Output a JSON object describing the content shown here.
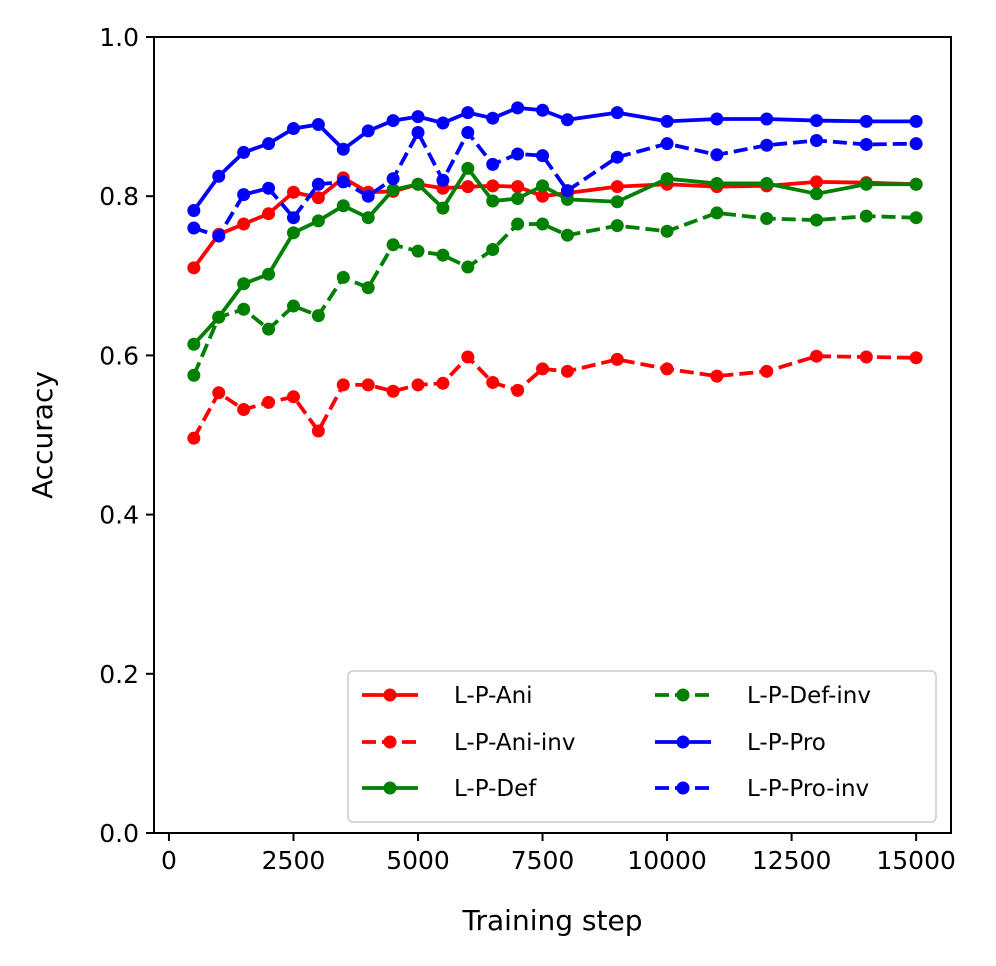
{
  "chart_data": {
    "type": "line",
    "title": "",
    "xlabel": "Training step",
    "ylabel": "Accuracy",
    "xlim": [
      -300,
      15700
    ],
    "ylim": [
      0.0,
      1.0
    ],
    "xticks": [
      0,
      2500,
      5000,
      7500,
      10000,
      12500,
      15000
    ],
    "xtick_labels": [
      "0",
      "2500",
      "5000",
      "7500",
      "10000",
      "12500",
      "15000"
    ],
    "yticks": [
      0.0,
      0.2,
      0.4,
      0.6,
      0.8,
      1.0
    ],
    "ytick_labels": [
      "0.0",
      "0.2",
      "0.4",
      "0.6",
      "0.8",
      "1.0"
    ],
    "grid": false,
    "legend_position": "bottom-right",
    "x": [
      500,
      1000,
      1500,
      2000,
      2500,
      3000,
      3500,
      4000,
      4500,
      5000,
      5500,
      6000,
      6500,
      7000,
      7500,
      8000,
      9000,
      10000,
      11000,
      12000,
      13000,
      14000,
      15000
    ],
    "series": [
      {
        "name": "L-P-Ani",
        "color": "#ff0000",
        "dash": "solid",
        "values": [
          0.71,
          0.752,
          0.765,
          0.778,
          0.805,
          0.798,
          0.823,
          0.805,
          0.806,
          0.815,
          0.81,
          0.812,
          0.813,
          0.812,
          0.8,
          0.804,
          0.812,
          0.815,
          0.812,
          0.813,
          0.818,
          0.817,
          0.815
        ]
      },
      {
        "name": "L-P-Ani-inv",
        "color": "#ff0000",
        "dash": "dashed",
        "values": [
          0.496,
          0.553,
          0.532,
          0.541,
          0.548,
          0.505,
          0.563,
          0.563,
          0.555,
          0.563,
          0.565,
          0.598,
          0.566,
          0.556,
          0.583,
          0.58,
          0.595,
          0.583,
          0.574,
          0.58,
          0.599,
          0.598,
          0.597
        ]
      },
      {
        "name": "L-P-Def",
        "color": "#008000",
        "dash": "solid",
        "values": [
          0.614,
          0.648,
          0.69,
          0.702,
          0.754,
          0.769,
          0.788,
          0.773,
          0.808,
          0.815,
          0.785,
          0.835,
          0.794,
          0.797,
          0.813,
          0.796,
          0.793,
          0.822,
          0.816,
          0.816,
          0.803,
          0.815,
          0.815
        ]
      },
      {
        "name": "L-P-Def-inv",
        "color": "#008000",
        "dash": "dashed",
        "values": [
          0.575,
          0.648,
          0.658,
          0.633,
          0.662,
          0.65,
          0.698,
          0.685,
          0.739,
          0.731,
          0.726,
          0.711,
          0.733,
          0.765,
          0.765,
          0.751,
          0.763,
          0.756,
          0.779,
          0.772,
          0.77,
          0.775,
          0.773
        ]
      },
      {
        "name": "L-P-Pro",
        "color": "#0000ff",
        "dash": "solid",
        "values": [
          0.782,
          0.825,
          0.855,
          0.866,
          0.885,
          0.89,
          0.859,
          0.882,
          0.895,
          0.9,
          0.892,
          0.905,
          0.898,
          0.911,
          0.908,
          0.896,
          0.905,
          0.894,
          0.897,
          0.897,
          0.895,
          0.894,
          0.894
        ]
      },
      {
        "name": "L-P-Pro-inv",
        "color": "#0000ff",
        "dash": "dashed",
        "values": [
          0.76,
          0.75,
          0.802,
          0.81,
          0.773,
          0.815,
          0.818,
          0.8,
          0.822,
          0.88,
          0.82,
          0.88,
          0.84,
          0.853,
          0.851,
          0.807,
          0.849,
          0.866,
          0.852,
          0.864,
          0.87,
          0.865,
          0.866
        ]
      }
    ]
  }
}
